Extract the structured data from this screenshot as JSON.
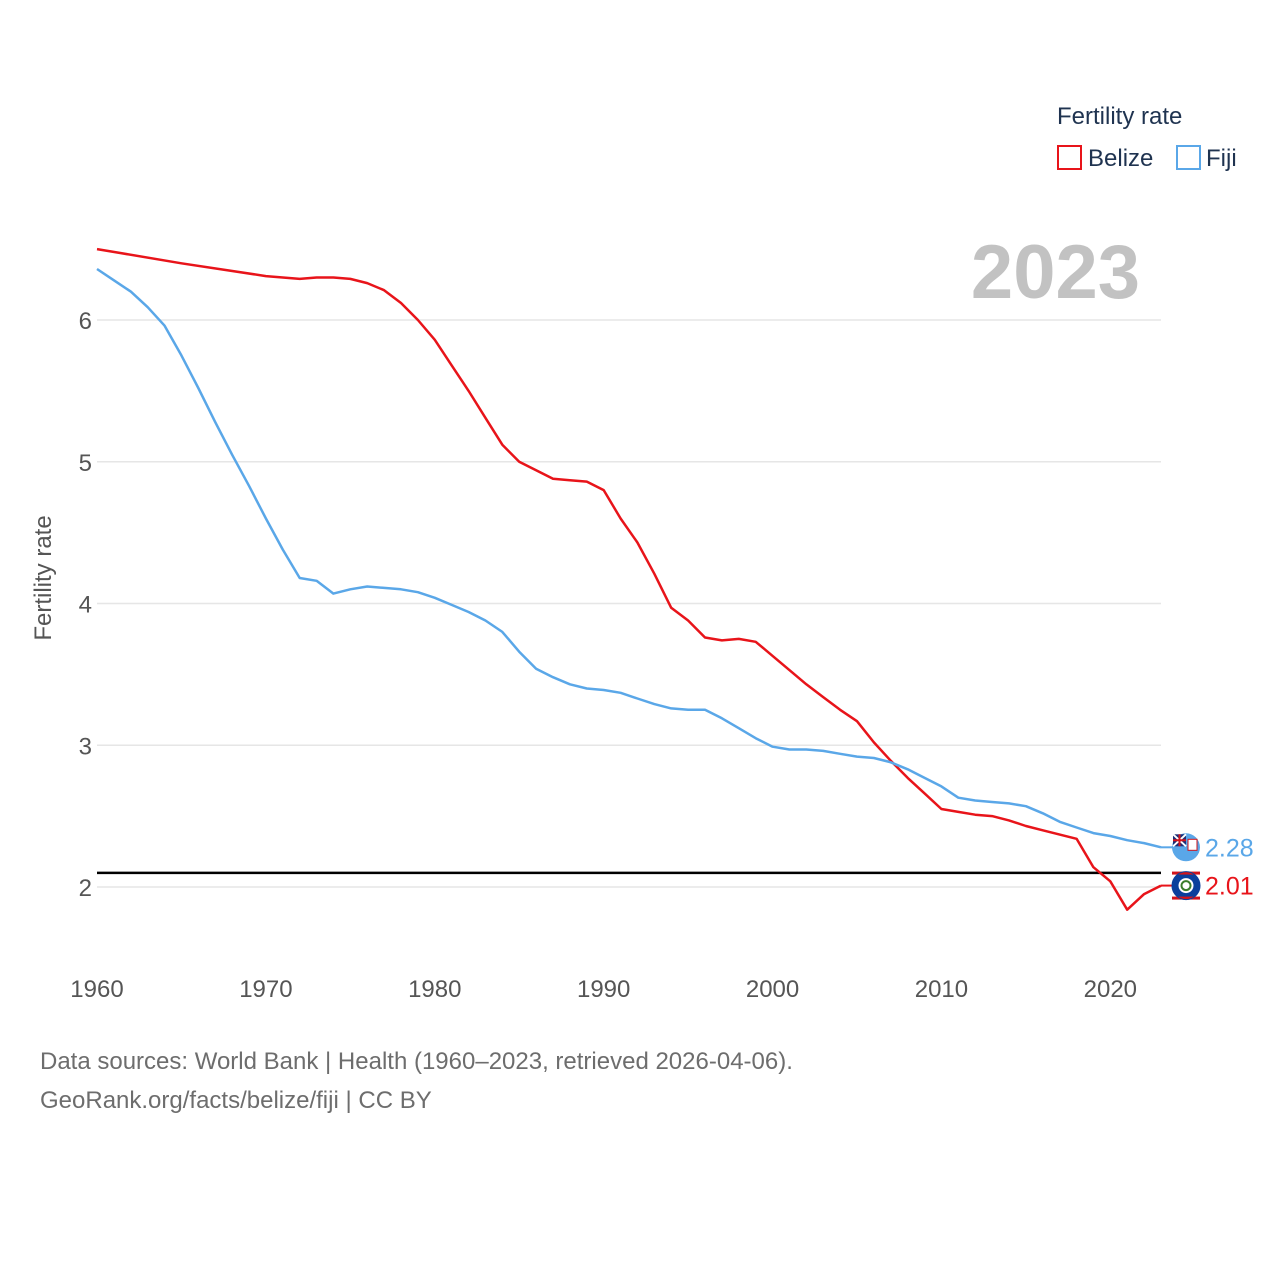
{
  "chart_data": {
    "type": "line",
    "title": "",
    "year_watermark": "2023",
    "ylabel": "Fertility rate",
    "xlabel": "",
    "xlim": [
      1960,
      2023
    ],
    "ylim": [
      1.6,
      6.8
    ],
    "x_ticks": [
      1960,
      1970,
      1980,
      1990,
      2000,
      2010,
      2020
    ],
    "y_ticks": [
      2,
      3,
      4,
      5,
      6
    ],
    "reference_line": 2.1,
    "legend": {
      "title": "Fertility rate",
      "position": "top-right"
    },
    "series": [
      {
        "name": "Belize",
        "color": "#e8141a",
        "end_label": "2.01",
        "flag_icon": "belize-flag-icon",
        "points": [
          [
            1960,
            6.5
          ],
          [
            1965,
            6.4
          ],
          [
            1970,
            6.31
          ],
          [
            1972,
            6.29
          ],
          [
            1973,
            6.3
          ],
          [
            1974,
            6.3
          ],
          [
            1975,
            6.29
          ],
          [
            1976,
            6.26
          ],
          [
            1977,
            6.21
          ],
          [
            1978,
            6.12
          ],
          [
            1979,
            6.0
          ],
          [
            1980,
            5.86
          ],
          [
            1981,
            5.68
          ],
          [
            1982,
            5.5
          ],
          [
            1983,
            5.31
          ],
          [
            1984,
            5.12
          ],
          [
            1985,
            5.0
          ],
          [
            1986,
            4.94
          ],
          [
            1987,
            4.88
          ],
          [
            1988,
            4.87
          ],
          [
            1989,
            4.86
          ],
          [
            1990,
            4.8
          ],
          [
            1991,
            4.6
          ],
          [
            1992,
            4.43
          ],
          [
            1993,
            4.21
          ],
          [
            1994,
            3.97
          ],
          [
            1995,
            3.88
          ],
          [
            1996,
            3.76
          ],
          [
            1997,
            3.74
          ],
          [
            1998,
            3.75
          ],
          [
            1999,
            3.73
          ],
          [
            2000,
            3.63
          ],
          [
            2001,
            3.53
          ],
          [
            2002,
            3.43
          ],
          [
            2003,
            3.34
          ],
          [
            2004,
            3.25
          ],
          [
            2005,
            3.17
          ],
          [
            2006,
            3.02
          ],
          [
            2007,
            2.89
          ],
          [
            2008,
            2.77
          ],
          [
            2009,
            2.66
          ],
          [
            2010,
            2.55
          ],
          [
            2011,
            2.53
          ],
          [
            2012,
            2.51
          ],
          [
            2013,
            2.5
          ],
          [
            2014,
            2.47
          ],
          [
            2015,
            2.43
          ],
          [
            2016,
            2.4
          ],
          [
            2017,
            2.37
          ],
          [
            2018,
            2.34
          ],
          [
            2019,
            2.14
          ],
          [
            2020,
            2.04
          ],
          [
            2021,
            1.84
          ],
          [
            2022,
            1.95
          ],
          [
            2023,
            2.01
          ]
        ]
      },
      {
        "name": "Fiji",
        "color": "#5aa7e8",
        "end_label": "2.28",
        "flag_icon": "fiji-flag-icon",
        "points": [
          [
            1960,
            6.36
          ],
          [
            1961,
            6.28
          ],
          [
            1962,
            6.2
          ],
          [
            1963,
            6.09
          ],
          [
            1964,
            5.96
          ],
          [
            1965,
            5.75
          ],
          [
            1966,
            5.52
          ],
          [
            1967,
            5.28
          ],
          [
            1968,
            5.05
          ],
          [
            1969,
            4.83
          ],
          [
            1970,
            4.6
          ],
          [
            1971,
            4.38
          ],
          [
            1972,
            4.18
          ],
          [
            1973,
            4.16
          ],
          [
            1974,
            4.07
          ],
          [
            1975,
            4.1
          ],
          [
            1976,
            4.12
          ],
          [
            1977,
            4.11
          ],
          [
            1978,
            4.1
          ],
          [
            1979,
            4.08
          ],
          [
            1980,
            4.04
          ],
          [
            1981,
            3.99
          ],
          [
            1982,
            3.94
          ],
          [
            1983,
            3.88
          ],
          [
            1984,
            3.8
          ],
          [
            1985,
            3.66
          ],
          [
            1986,
            3.54
          ],
          [
            1987,
            3.48
          ],
          [
            1988,
            3.43
          ],
          [
            1989,
            3.4
          ],
          [
            1990,
            3.39
          ],
          [
            1991,
            3.37
          ],
          [
            1992,
            3.33
          ],
          [
            1993,
            3.29
          ],
          [
            1994,
            3.26
          ],
          [
            1995,
            3.25
          ],
          [
            1996,
            3.25
          ],
          [
            1997,
            3.19
          ],
          [
            1998,
            3.12
          ],
          [
            1999,
            3.05
          ],
          [
            2000,
            2.99
          ],
          [
            2001,
            2.97
          ],
          [
            2002,
            2.97
          ],
          [
            2003,
            2.96
          ],
          [
            2004,
            2.94
          ],
          [
            2005,
            2.92
          ],
          [
            2006,
            2.91
          ],
          [
            2007,
            2.88
          ],
          [
            2008,
            2.83
          ],
          [
            2009,
            2.77
          ],
          [
            2010,
            2.71
          ],
          [
            2011,
            2.63
          ],
          [
            2012,
            2.61
          ],
          [
            2013,
            2.6
          ],
          [
            2014,
            2.59
          ],
          [
            2015,
            2.57
          ],
          [
            2016,
            2.52
          ],
          [
            2017,
            2.46
          ],
          [
            2018,
            2.42
          ],
          [
            2019,
            2.38
          ],
          [
            2020,
            2.36
          ],
          [
            2021,
            2.33
          ],
          [
            2022,
            2.31
          ],
          [
            2023,
            2.28
          ]
        ]
      }
    ]
  },
  "source": {
    "line1": "Data sources: World Bank | Health (1960–2023, retrieved 2026-04-06).",
    "line2": "GeoRank.org/facts/belize/fiji | CC BY"
  }
}
